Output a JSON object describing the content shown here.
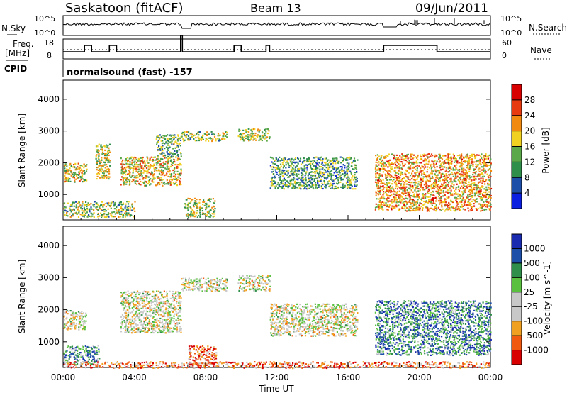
{
  "header": {
    "title": "Saskatoon (fitACF)",
    "beam": "Beam 13",
    "date": "09/Jun/2011"
  },
  "strips": {
    "nsky_label": "N.Sky",
    "nsearch_label": "N.Search",
    "freq_label_1": "Freq.",
    "freq_label_2": "[MHz]",
    "nave_label": "Nave",
    "cpid_label": "CPID",
    "cpid_text": "normalsound (fast) -157",
    "nsky_ticks": [
      "10^5",
      "10^0"
    ],
    "nsearch_ticks": [
      "10^5",
      "10^0"
    ],
    "freq_ticks": [
      "18",
      "8"
    ],
    "nave_ticks": [
      "60",
      "0"
    ]
  },
  "colors": {
    "power": [
      "#0a1fe0",
      "#1e4fa8",
      "#2f8f4a",
      "#5aa84a",
      "#f0d020",
      "#f08a10",
      "#e83a10",
      "#d80000"
    ],
    "velocity": [
      "#d80000",
      "#f05a10",
      "#f0a020",
      "#c8c8c8",
      "#c8c8c8",
      "#5ac040",
      "#2f8f4a",
      "#1e4fa8",
      "#1a2bb0"
    ]
  },
  "chart_data": [
    {
      "type": "heatmap",
      "name": "power",
      "ylabel": "Slant Range [km]",
      "yticks": [
        "1000",
        "2000",
        "3000",
        "4000"
      ],
      "ylim": [
        200,
        4600
      ],
      "xlim": [
        0,
        24
      ],
      "colorbar_label": "Power [dB]",
      "colorbar_ticks": [
        "4",
        "8",
        "12",
        "16",
        "20",
        "24",
        "28"
      ],
      "colorbar_range": [
        0,
        32
      ],
      "bands": [
        {
          "t0": 0.0,
          "t1": 1.3,
          "r0": 1400,
          "r1": 2000,
          "level": 0.55
        },
        {
          "t0": 0.0,
          "t1": 4.0,
          "r0": 300,
          "r1": 800,
          "level": 0.45
        },
        {
          "t0": 1.8,
          "t1": 2.6,
          "r0": 1500,
          "r1": 2600,
          "level": 0.5
        },
        {
          "t0": 3.2,
          "t1": 6.6,
          "r0": 1300,
          "r1": 2200,
          "level": 0.6
        },
        {
          "t0": 5.2,
          "t1": 6.6,
          "r0": 2200,
          "r1": 2900,
          "level": 0.4
        },
        {
          "t0": 6.6,
          "t1": 9.2,
          "r0": 2700,
          "r1": 3000,
          "level": 0.45
        },
        {
          "t0": 6.8,
          "t1": 8.5,
          "r0": 300,
          "r1": 900,
          "level": 0.5
        },
        {
          "t0": 9.8,
          "t1": 11.6,
          "r0": 2700,
          "r1": 3100,
          "level": 0.5
        },
        {
          "t0": 11.6,
          "t1": 16.5,
          "r0": 1200,
          "r1": 2200,
          "level": 0.35
        },
        {
          "t0": 17.5,
          "t1": 24.0,
          "r0": 500,
          "r1": 2300,
          "level": 0.65
        }
      ]
    },
    {
      "type": "heatmap",
      "name": "velocity",
      "xlabel": "Time UT",
      "ylabel": "Slant Range [km]",
      "xticks": [
        "00:00",
        "04:00",
        "08:00",
        "12:00",
        "16:00",
        "20:00",
        "00:00"
      ],
      "yticks": [
        "1000",
        "2000",
        "3000",
        "4000"
      ],
      "ylim": [
        200,
        4600
      ],
      "xlim": [
        0,
        24
      ],
      "colorbar_label": "Velocity [m s^-1]",
      "colorbar_ticks": [
        "1000",
        "500",
        "100",
        "25",
        "-25",
        "-100",
        "-500",
        "-1000"
      ],
      "bands": [
        {
          "t0": 0.0,
          "t1": 1.3,
          "r0": 1400,
          "r1": 2000,
          "level": 0.45
        },
        {
          "t0": 0.0,
          "t1": 2.0,
          "r0": 300,
          "r1": 900,
          "level": 0.7
        },
        {
          "t0": 3.2,
          "t1": 6.6,
          "r0": 1300,
          "r1": 2600,
          "level": 0.45
        },
        {
          "t0": 6.6,
          "t1": 9.2,
          "r0": 2600,
          "r1": 3000,
          "level": 0.45
        },
        {
          "t0": 7.0,
          "t1": 8.6,
          "r0": 300,
          "r1": 900,
          "level": 0.15
        },
        {
          "t0": 9.8,
          "t1": 11.6,
          "r0": 2600,
          "r1": 3100,
          "level": 0.45
        },
        {
          "t0": 11.6,
          "t1": 16.5,
          "r0": 1200,
          "r1": 2200,
          "level": 0.45
        },
        {
          "t0": 17.5,
          "t1": 24.0,
          "r0": 600,
          "r1": 2300,
          "level": 0.75
        },
        {
          "t0": 0.0,
          "t1": 24.0,
          "r0": 200,
          "r1": 400,
          "level": 0.2
        }
      ]
    }
  ]
}
